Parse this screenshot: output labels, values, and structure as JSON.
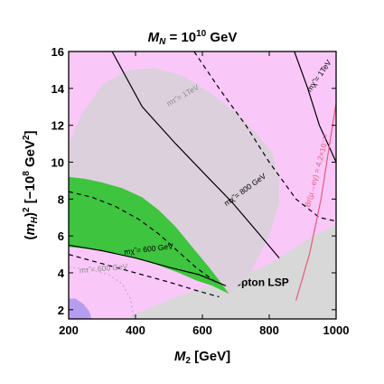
{
  "chart_data": {
    "type": "contour",
    "title": "M_N = 10^10 GeV",
    "title_base": "M",
    "title_sub": "N",
    "title_rest": " = 10",
    "title_exp": "10",
    "title_unit": " GeV",
    "xlabel_base": "M",
    "xlabel_sub": "2",
    "xlabel_unit": " [GeV]",
    "ylabel_open": "(",
    "ylabel_base": "m",
    "ylabel_sub": "H",
    "ylabel_close": ")",
    "ylabel_sup": "2",
    "ylabel_unit": " [−10",
    "ylabel_exp": "8",
    "ylabel_unit2": " GeV",
    "ylabel_exp2": "2",
    "ylabel_end": "]",
    "xlim": [
      200,
      1000
    ],
    "ylim": [
      1.5,
      16
    ],
    "xticks": [
      200,
      400,
      600,
      800,
      1000
    ],
    "yticks": [
      2,
      4,
      6,
      8,
      10,
      12,
      14,
      16
    ],
    "regions": [
      {
        "name": "slepton LSP",
        "label": "slepton LSP",
        "label_pos": [
          765,
          3.3
        ],
        "color": "#d8d8d8",
        "polygon": [
          [
            370,
            1.5
          ],
          [
            430,
            2.0
          ],
          [
            520,
            2.7
          ],
          [
            620,
            3.3
          ],
          [
            700,
            3.8
          ],
          [
            780,
            4.3
          ],
          [
            830,
            4.8
          ],
          [
            880,
            5.4
          ],
          [
            930,
            6.0
          ],
          [
            1000,
            6.6
          ],
          [
            1000,
            1.5
          ]
        ]
      },
      {
        "name": "green-region",
        "label": "",
        "color": "#3ec43e",
        "polygon": [
          [
            200,
            5.4
          ],
          [
            260,
            5.3
          ],
          [
            330,
            5.1
          ],
          [
            400,
            4.8
          ],
          [
            470,
            4.4
          ],
          [
            530,
            4.0
          ],
          [
            580,
            3.6
          ],
          [
            630,
            3.3
          ],
          [
            680,
            2.85
          ],
          [
            650,
            3.6
          ],
          [
            620,
            4.3
          ],
          [
            570,
            5.4
          ],
          [
            520,
            6.5
          ],
          [
            470,
            7.4
          ],
          [
            420,
            8.1
          ],
          [
            360,
            8.6
          ],
          [
            300,
            8.9
          ],
          [
            250,
            9.1
          ],
          [
            200,
            9.2
          ]
        ]
      },
      {
        "name": "light-gray-band",
        "label": "",
        "color": "#dcd0dc",
        "polygon": [
          [
            200,
            9.2
          ],
          [
            250,
            9.1
          ],
          [
            300,
            8.9
          ],
          [
            360,
            8.6
          ],
          [
            420,
            8.1
          ],
          [
            470,
            7.4
          ],
          [
            520,
            6.5
          ],
          [
            570,
            5.4
          ],
          [
            620,
            4.3
          ],
          [
            650,
            3.6
          ],
          [
            680,
            2.85
          ],
          [
            740,
            3.9
          ],
          [
            800,
            6.0
          ],
          [
            830,
            7.8
          ],
          [
            830,
            9.0
          ],
          [
            810,
            10.5
          ],
          [
            760,
            11.6
          ],
          [
            700,
            12.7
          ],
          [
            620,
            13.8
          ],
          [
            540,
            14.7
          ],
          [
            460,
            15.1
          ],
          [
            380,
            15.0
          ],
          [
            300,
            14.2
          ],
          [
            240,
            12.6
          ],
          [
            200,
            11.0
          ]
        ]
      },
      {
        "name": "purple-corner",
        "label": "",
        "color": "#b89cf0",
        "polygon": [
          [
            200,
            1.5
          ],
          [
            200,
            2.6
          ],
          [
            220,
            2.6
          ],
          [
            245,
            2.3
          ],
          [
            262,
            1.9
          ],
          [
            268,
            1.5
          ]
        ]
      }
    ],
    "contours": [
      {
        "label": "m_chi = 1 TeV",
        "color": "#000000",
        "dash": "",
        "points": [
          [
            875,
            16
          ],
          [
            915,
            14
          ],
          [
            950,
            12
          ],
          [
            975,
            11
          ],
          [
            1000,
            10
          ]
        ]
      },
      {
        "label": "m_tau = 1 TeV",
        "color": "#000000",
        "dash": "5,4",
        "points": [
          [
            575,
            16
          ],
          [
            650,
            14
          ],
          [
            730,
            12
          ],
          [
            800,
            10
          ],
          [
            880,
            8
          ],
          [
            950,
            7
          ],
          [
            1000,
            6.8
          ]
        ]
      },
      {
        "label": "m_chi = 800 GeV",
        "color": "#000000",
        "dash": "",
        "points": [
          [
            330,
            16
          ],
          [
            420,
            13
          ],
          [
            520,
            11
          ],
          [
            610,
            9.3
          ],
          [
            690,
            7.8
          ],
          [
            770,
            6.1
          ],
          [
            830,
            4.8
          ]
        ]
      },
      {
        "label": "m_chi = 600 GeV",
        "color": "#000000",
        "dash": "",
        "points": [
          [
            200,
            5.5
          ],
          [
            300,
            5.2
          ],
          [
            400,
            4.8
          ],
          [
            500,
            4.3
          ],
          [
            590,
            3.9
          ],
          [
            670,
            3.3
          ]
        ]
      },
      {
        "label": "",
        "color": "#000000",
        "dash": "5,4",
        "points": [
          [
            200,
            8.4
          ],
          [
            270,
            8.1
          ],
          [
            340,
            7.6
          ],
          [
            410,
            6.9
          ],
          [
            470,
            6.1
          ],
          [
            525,
            5.2
          ],
          [
            580,
            4.3
          ],
          [
            640,
            3.5
          ]
        ]
      },
      {
        "label": "",
        "color": "#000000",
        "dash": "5,4",
        "points": [
          [
            200,
            5.0
          ],
          [
            300,
            4.5
          ],
          [
            400,
            4.0
          ],
          [
            500,
            3.5
          ],
          [
            590,
            3.0
          ],
          [
            650,
            2.7
          ]
        ]
      },
      {
        "label": "m_tau = 600 GeV",
        "color": "#c8a4c8",
        "dash": "2,3",
        "points": [
          [
            200,
            4.3
          ],
          [
            260,
            4.2
          ],
          [
            320,
            3.9
          ],
          [
            360,
            3.4
          ],
          [
            385,
            2.6
          ],
          [
            395,
            1.5
          ]
        ]
      },
      {
        "label": "Br(mu -> e gamma) = 4.2 x 10^-13",
        "color": "#e85a7a",
        "dash": "",
        "points": [
          [
            880,
            2.5
          ],
          [
            920,
            5.0
          ],
          [
            955,
            8.0
          ],
          [
            985,
            11.5
          ],
          [
            1000,
            13.2
          ]
        ]
      }
    ],
    "annotations": [
      {
        "text": "mχ̃ = 1TeV",
        "pos": [
          955,
          14.6
        ],
        "angle": -55,
        "color": "#000000"
      },
      {
        "text": "mτ̃ = 1TeV",
        "pos": [
          545,
          13.5
        ],
        "angle": -30,
        "color": "#8a8a8a"
      },
      {
        "text": "mχ̃ = 800 GeV",
        "pos": [
          732,
          8.4
        ],
        "angle": -36,
        "color": "#000000"
      },
      {
        "text": "mχ̃ = 600 GeV",
        "pos": [
          440,
          5.15
        ],
        "angle": -7,
        "color": "#000000"
      },
      {
        "text": "mτ̃ = 600 GeV",
        "pos": [
          305,
          4.1
        ],
        "angle": -5,
        "color": "#8a8a8a"
      },
      {
        "text": "Br(μ→eγ) = 4.2×10⁻¹³",
        "pos": [
          950,
          9.5
        ],
        "angle": -75,
        "color": "#e85a7a"
      }
    ]
  }
}
